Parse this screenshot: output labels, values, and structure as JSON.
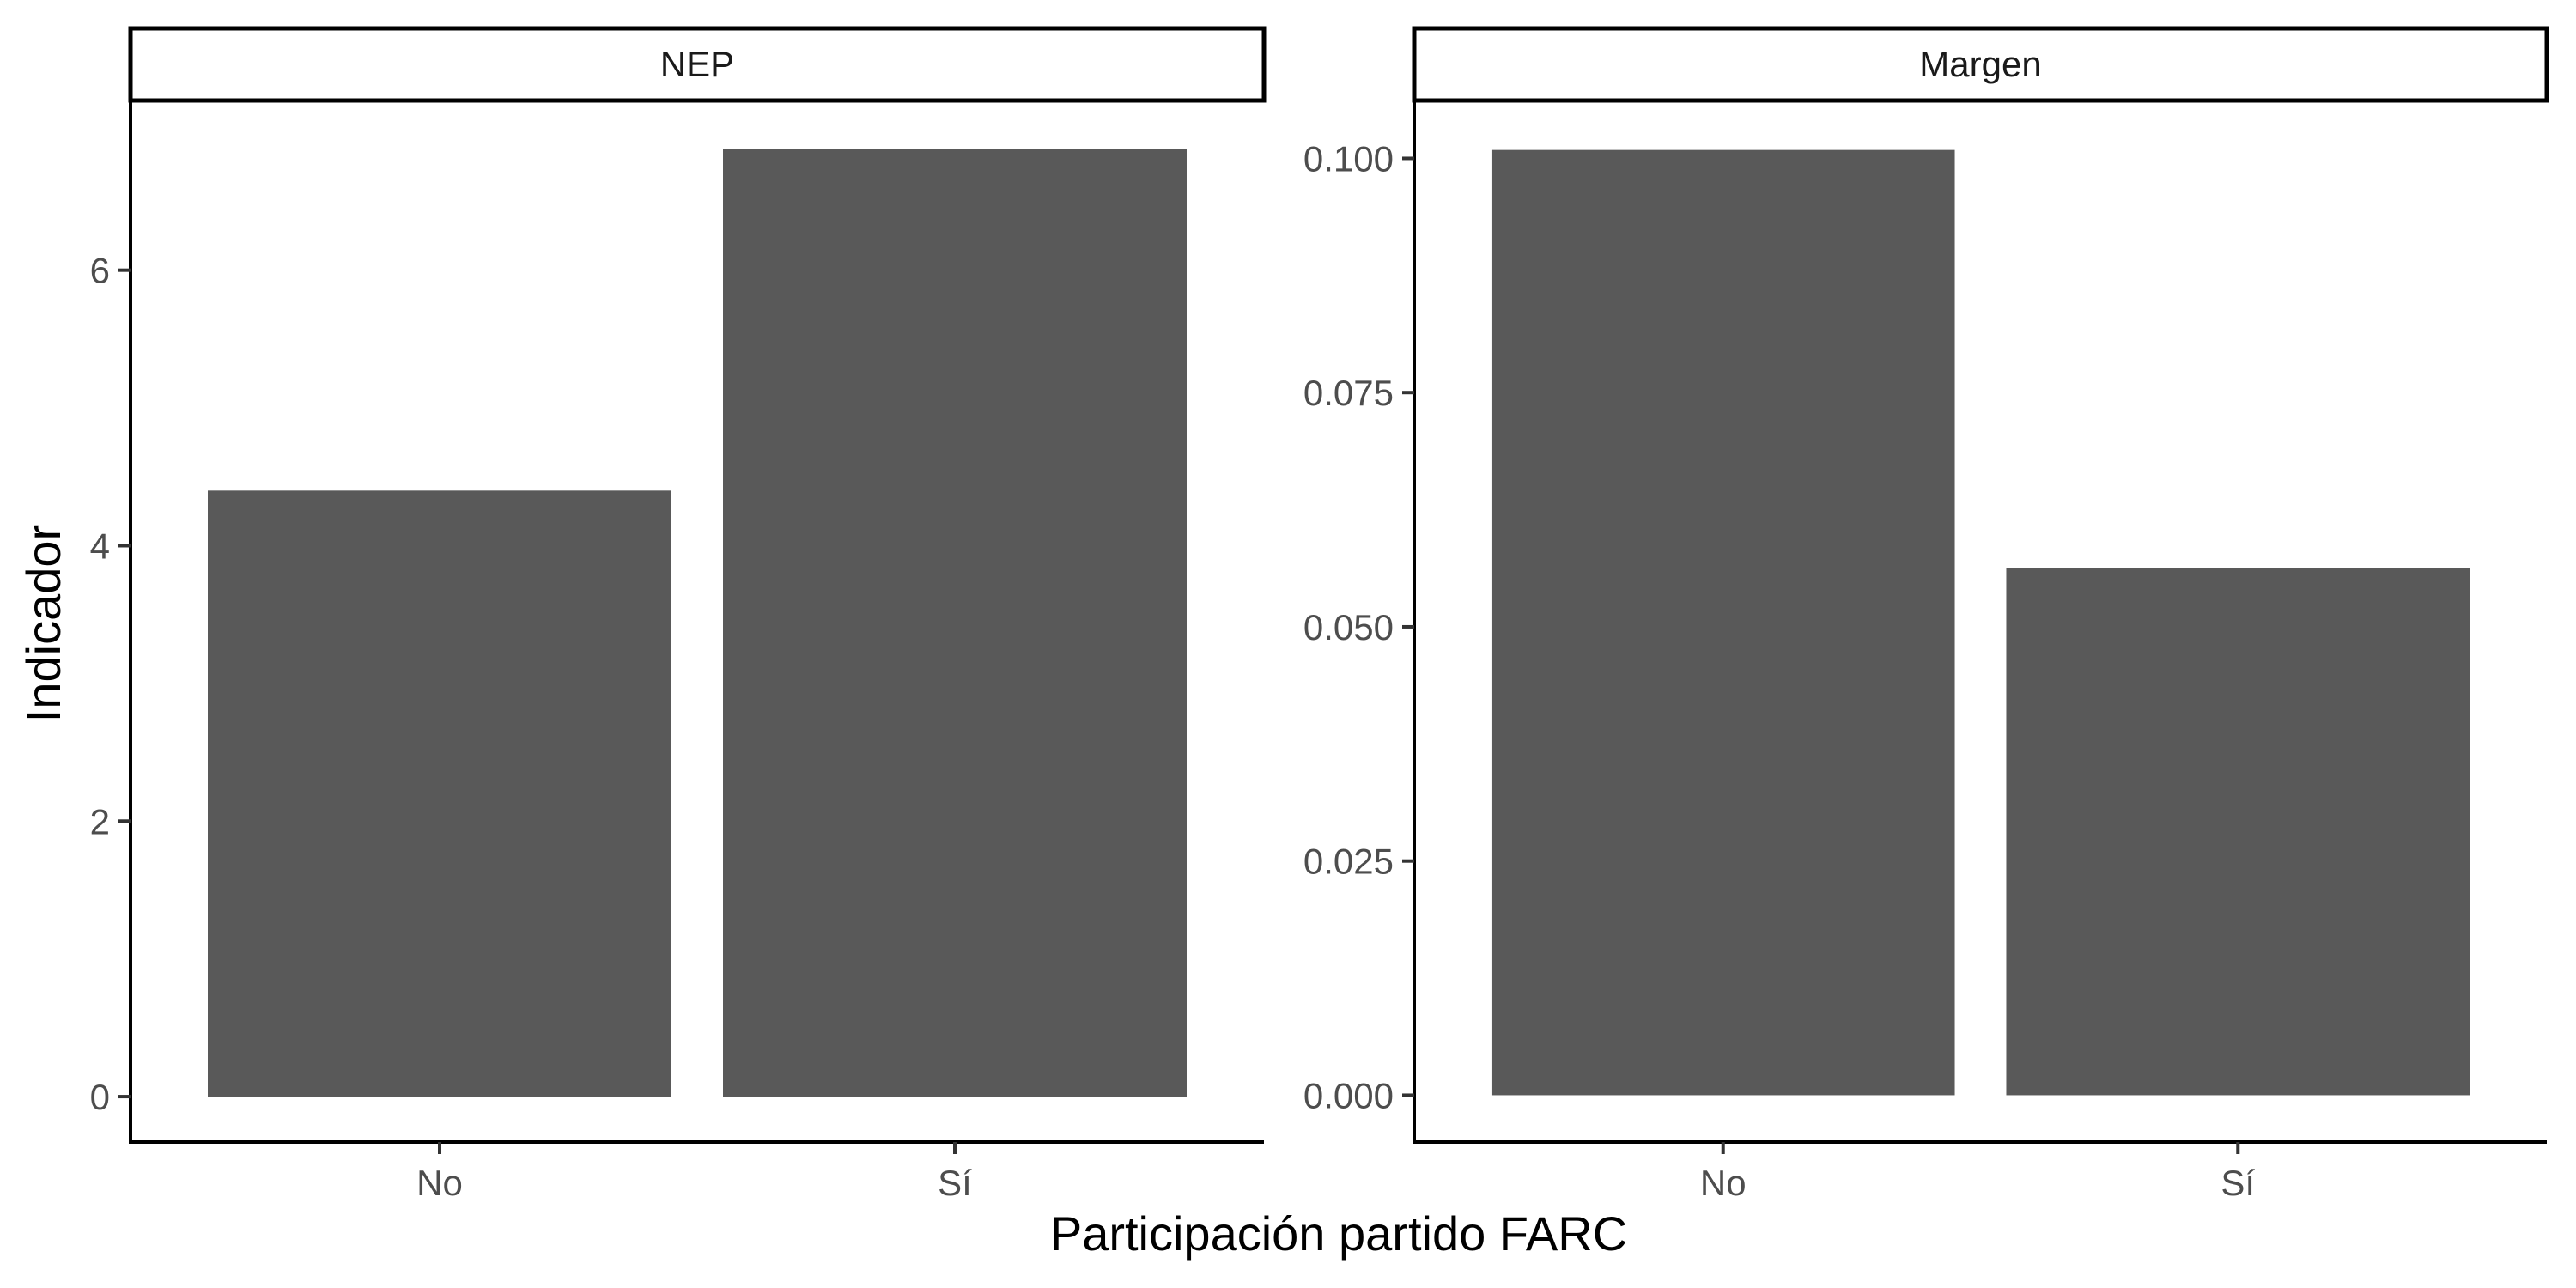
{
  "chart_data": {
    "type": "bar",
    "xlabel": "Participación partido FARC",
    "ylabel": "Indicador",
    "bar_color": "#595959",
    "grid": false,
    "facet_scales": "free_y",
    "panels": [
      {
        "strip_label": "NEP",
        "categories": [
          "No",
          "Sí"
        ],
        "values": [
          4.4,
          6.88
        ],
        "ylim": [
          -0.33,
          7.22
        ],
        "yticks": [
          0,
          2,
          4,
          6
        ],
        "ytick_labels": [
          "0",
          "2",
          "4",
          "6"
        ]
      },
      {
        "strip_label": "Margen",
        "categories": [
          "No",
          "Sí"
        ],
        "values": [
          0.1009,
          0.0563
        ],
        "ylim": [
          -0.005,
          0.106
        ],
        "yticks": [
          0,
          0.025,
          0.05,
          0.075,
          0.1
        ],
        "ytick_labels": [
          "0.000",
          "0.025",
          "0.050",
          "0.075",
          "0.100"
        ]
      }
    ]
  }
}
